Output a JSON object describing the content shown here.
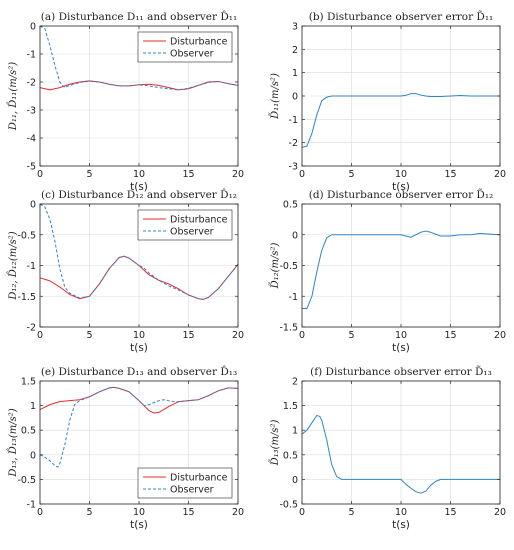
{
  "figure": {
    "layout": "3x2 grid of line plots"
  },
  "chart_data": [
    {
      "type": "line",
      "title": "(a) Disturbance D₁₁ and observer D̂₁₁",
      "xlabel": "t(s)",
      "ylabel": "D₁₁, D̂₁₁(m/s²)",
      "xlim": [
        0,
        20
      ],
      "ylim": [
        -5,
        0
      ],
      "xticks": [
        0,
        5,
        10,
        15,
        20
      ],
      "yticks": [
        0,
        -1,
        -2,
        -3,
        -4,
        -5
      ],
      "grid": true,
      "legend": "top-right",
      "series": [
        {
          "name": "Disturbance",
          "color": "#e8292f",
          "dash": "solid",
          "x": [
            0,
            1,
            2,
            3,
            4,
            5,
            6,
            7,
            8,
            9,
            10,
            11,
            12,
            13,
            14,
            15,
            16,
            17,
            18,
            19,
            20
          ],
          "y": [
            -2.2,
            -2.28,
            -2.2,
            -2.08,
            -2.0,
            -1.96,
            -2.0,
            -2.08,
            -2.14,
            -2.14,
            -2.1,
            -2.08,
            -2.12,
            -2.2,
            -2.28,
            -2.24,
            -2.12,
            -2.0,
            -1.98,
            -2.06,
            -2.12
          ]
        },
        {
          "name": "Observer",
          "color": "#2f84c6",
          "dash": "dashed",
          "x": [
            0,
            0.5,
            1,
            1.5,
            2,
            2.5,
            3,
            4,
            5,
            6,
            7,
            8,
            9,
            10,
            11,
            12,
            13,
            14,
            15,
            16,
            17,
            18,
            19,
            20
          ],
          "y": [
            0,
            -0.1,
            -0.7,
            -1.4,
            -2.0,
            -2.2,
            -2.12,
            -2.02,
            -1.97,
            -2.0,
            -2.08,
            -2.14,
            -2.14,
            -2.1,
            -2.14,
            -2.2,
            -2.24,
            -2.28,
            -2.22,
            -2.12,
            -2.02,
            -1.98,
            -2.06,
            -2.12
          ]
        }
      ]
    },
    {
      "type": "line",
      "title": "(b) Disturbance observer error D̃₁₁",
      "xlabel": "t(s)",
      "ylabel": "D̃₁₁(m/s²)",
      "xlim": [
        0,
        20
      ],
      "ylim": [
        -3,
        3
      ],
      "xticks": [
        0,
        5,
        10,
        15,
        20
      ],
      "yticks": [
        3,
        2,
        1,
        0,
        -1,
        -2,
        -3
      ],
      "grid": true,
      "series": [
        {
          "color": "#2f84c6",
          "dash": "solid",
          "x": [
            0,
            0.5,
            1,
            1.5,
            2,
            2.5,
            3,
            4,
            5,
            6,
            7,
            8,
            9,
            10,
            10.5,
            11,
            11.5,
            12,
            12.5,
            13,
            14,
            15,
            16,
            17,
            18,
            19,
            20
          ],
          "y": [
            -2.2,
            -2.15,
            -1.6,
            -0.8,
            -0.2,
            -0.05,
            0,
            0,
            0,
            0,
            0,
            0,
            0,
            0,
            0.03,
            0.1,
            0.1,
            0.04,
            0,
            -0.02,
            -0.02,
            0,
            0.02,
            0,
            0,
            0,
            0
          ]
        }
      ]
    },
    {
      "type": "line",
      "title": "(c) Disturbance D₁₂ and observer D̂₁₂",
      "xlabel": "t(s)",
      "ylabel": "D₁₂, D̂₁₂(m/s²)",
      "xlim": [
        0,
        20
      ],
      "ylim": [
        -2,
        0
      ],
      "xticks": [
        0,
        5,
        10,
        15,
        20
      ],
      "yticks": [
        0,
        -0.5,
        -1,
        -1.5,
        -2
      ],
      "grid": true,
      "legend": "top-right",
      "series": [
        {
          "name": "Disturbance",
          "color": "#e8292f",
          "dash": "solid",
          "x": [
            0,
            1,
            2,
            3,
            4,
            5,
            6,
            7,
            8,
            8.5,
            9,
            10,
            11,
            12,
            13,
            14,
            15,
            16,
            16.5,
            17,
            18,
            19,
            20
          ],
          "y": [
            -1.2,
            -1.25,
            -1.35,
            -1.47,
            -1.54,
            -1.5,
            -1.3,
            -1.05,
            -0.87,
            -0.85,
            -0.88,
            -1.0,
            -1.15,
            -1.24,
            -1.3,
            -1.38,
            -1.48,
            -1.54,
            -1.55,
            -1.52,
            -1.38,
            -1.18,
            -0.98
          ]
        },
        {
          "name": "Observer",
          "color": "#2f84c6",
          "dash": "dashed",
          "x": [
            0,
            0.5,
            1,
            1.5,
            2,
            2.5,
            3,
            4,
            5,
            6,
            7,
            8,
            8.5,
            9,
            10,
            10.5,
            11,
            12,
            13,
            14,
            15,
            16,
            16.5,
            17,
            18,
            19,
            20
          ],
          "y": [
            0,
            -0.05,
            -0.25,
            -0.6,
            -1.05,
            -1.35,
            -1.45,
            -1.53,
            -1.5,
            -1.3,
            -1.05,
            -0.87,
            -0.85,
            -0.88,
            -1.0,
            -1.04,
            -1.12,
            -1.24,
            -1.33,
            -1.4,
            -1.48,
            -1.54,
            -1.55,
            -1.52,
            -1.38,
            -1.18,
            -0.98
          ]
        }
      ]
    },
    {
      "type": "line",
      "title": "(d) Disturbance observer error D̃₁₂",
      "xlabel": "t(s)",
      "ylabel": "D̃₁₂(m/s²)",
      "xlim": [
        0,
        20
      ],
      "ylim": [
        -1.5,
        0.5
      ],
      "xticks": [
        0,
        5,
        10,
        15,
        20
      ],
      "yticks": [
        0.5,
        0,
        -0.5,
        -1,
        -1.5
      ],
      "grid": true,
      "series": [
        {
          "color": "#2f84c6",
          "dash": "solid",
          "x": [
            0,
            0.5,
            1,
            1.5,
            2,
            2.5,
            3,
            4,
            5,
            6,
            7,
            8,
            9,
            10,
            10.5,
            11,
            11.5,
            12,
            12.5,
            13,
            14,
            15,
            16,
            17,
            18,
            19,
            20
          ],
          "y": [
            -1.2,
            -1.2,
            -1.0,
            -0.6,
            -0.25,
            -0.05,
            0,
            0,
            0,
            0,
            0,
            0,
            0,
            0,
            -0.02,
            -0.04,
            0,
            0.04,
            0.06,
            0.04,
            -0.02,
            -0.02,
            0,
            0,
            0.02,
            0.01,
            0
          ]
        }
      ]
    },
    {
      "type": "line",
      "title": "(e) Disturbance D₁₃ and observer D̂₁₃",
      "xlabel": "t(s)",
      "ylabel": "D₁₃, D̂₁₃(m/s²)",
      "xlim": [
        0,
        20
      ],
      "ylim": [
        -1,
        1.5
      ],
      "xticks": [
        0,
        5,
        10,
        15,
        20
      ],
      "yticks": [
        1.5,
        1,
        0.5,
        0,
        -0.5,
        -1
      ],
      "grid": true,
      "legend": "bottom-right",
      "series": [
        {
          "name": "Disturbance",
          "color": "#e8292f",
          "dash": "solid",
          "x": [
            0,
            1,
            2,
            3,
            4,
            5,
            6,
            7,
            7.5,
            8,
            9,
            10,
            11,
            11.5,
            12,
            13,
            14,
            15,
            16,
            17,
            18,
            19,
            20
          ],
          "y": [
            0.92,
            1.02,
            1.08,
            1.1,
            1.12,
            1.18,
            1.28,
            1.36,
            1.37,
            1.35,
            1.28,
            1.1,
            0.9,
            0.85,
            0.86,
            0.98,
            1.08,
            1.1,
            1.12,
            1.2,
            1.3,
            1.36,
            1.35
          ]
        },
        {
          "name": "Observer",
          "color": "#2f84c6",
          "dash": "dashed",
          "x": [
            0,
            0.5,
            1,
            1.5,
            1.8,
            2,
            2.5,
            3,
            3.5,
            4,
            5,
            6,
            7,
            7.5,
            8,
            9,
            10,
            10.5,
            11,
            11.5,
            12,
            12.5,
            13,
            13.5,
            14,
            15,
            16,
            17,
            18,
            19,
            20
          ],
          "y": [
            0,
            -0.05,
            -0.12,
            -0.22,
            -0.25,
            -0.18,
            0.2,
            0.7,
            1.02,
            1.1,
            1.18,
            1.28,
            1.36,
            1.37,
            1.35,
            1.28,
            1.1,
            1.0,
            1.02,
            1.06,
            1.1,
            1.12,
            1.1,
            1.08,
            1.08,
            1.1,
            1.12,
            1.2,
            1.3,
            1.36,
            1.35
          ]
        }
      ]
    },
    {
      "type": "line",
      "title": "(f) Disturbance observer error D̃₁₃",
      "xlabel": "t(s)",
      "ylabel": "D̃₁₃(m/s²)",
      "xlim": [
        0,
        20
      ],
      "ylim": [
        -0.5,
        2
      ],
      "xticks": [
        0,
        5,
        10,
        15,
        20
      ],
      "yticks": [
        2,
        1.5,
        1,
        0.5,
        0,
        -0.5
      ],
      "grid": true,
      "series": [
        {
          "color": "#2f84c6",
          "dash": "solid",
          "x": [
            0,
            0.5,
            1,
            1.5,
            1.8,
            2,
            2.5,
            3,
            3.5,
            4,
            5,
            6,
            7,
            8,
            9,
            10,
            10.5,
            11,
            11.5,
            12,
            12.5,
            13,
            13.5,
            14,
            15,
            16,
            17,
            18,
            19,
            20
          ],
          "y": [
            0.92,
            1.0,
            1.15,
            1.3,
            1.28,
            1.2,
            0.8,
            0.3,
            0.06,
            0,
            0,
            0,
            0,
            0,
            0,
            0,
            -0.1,
            -0.18,
            -0.25,
            -0.28,
            -0.24,
            -0.12,
            -0.04,
            0,
            0,
            0,
            0,
            0,
            0,
            0
          ]
        }
      ]
    }
  ]
}
